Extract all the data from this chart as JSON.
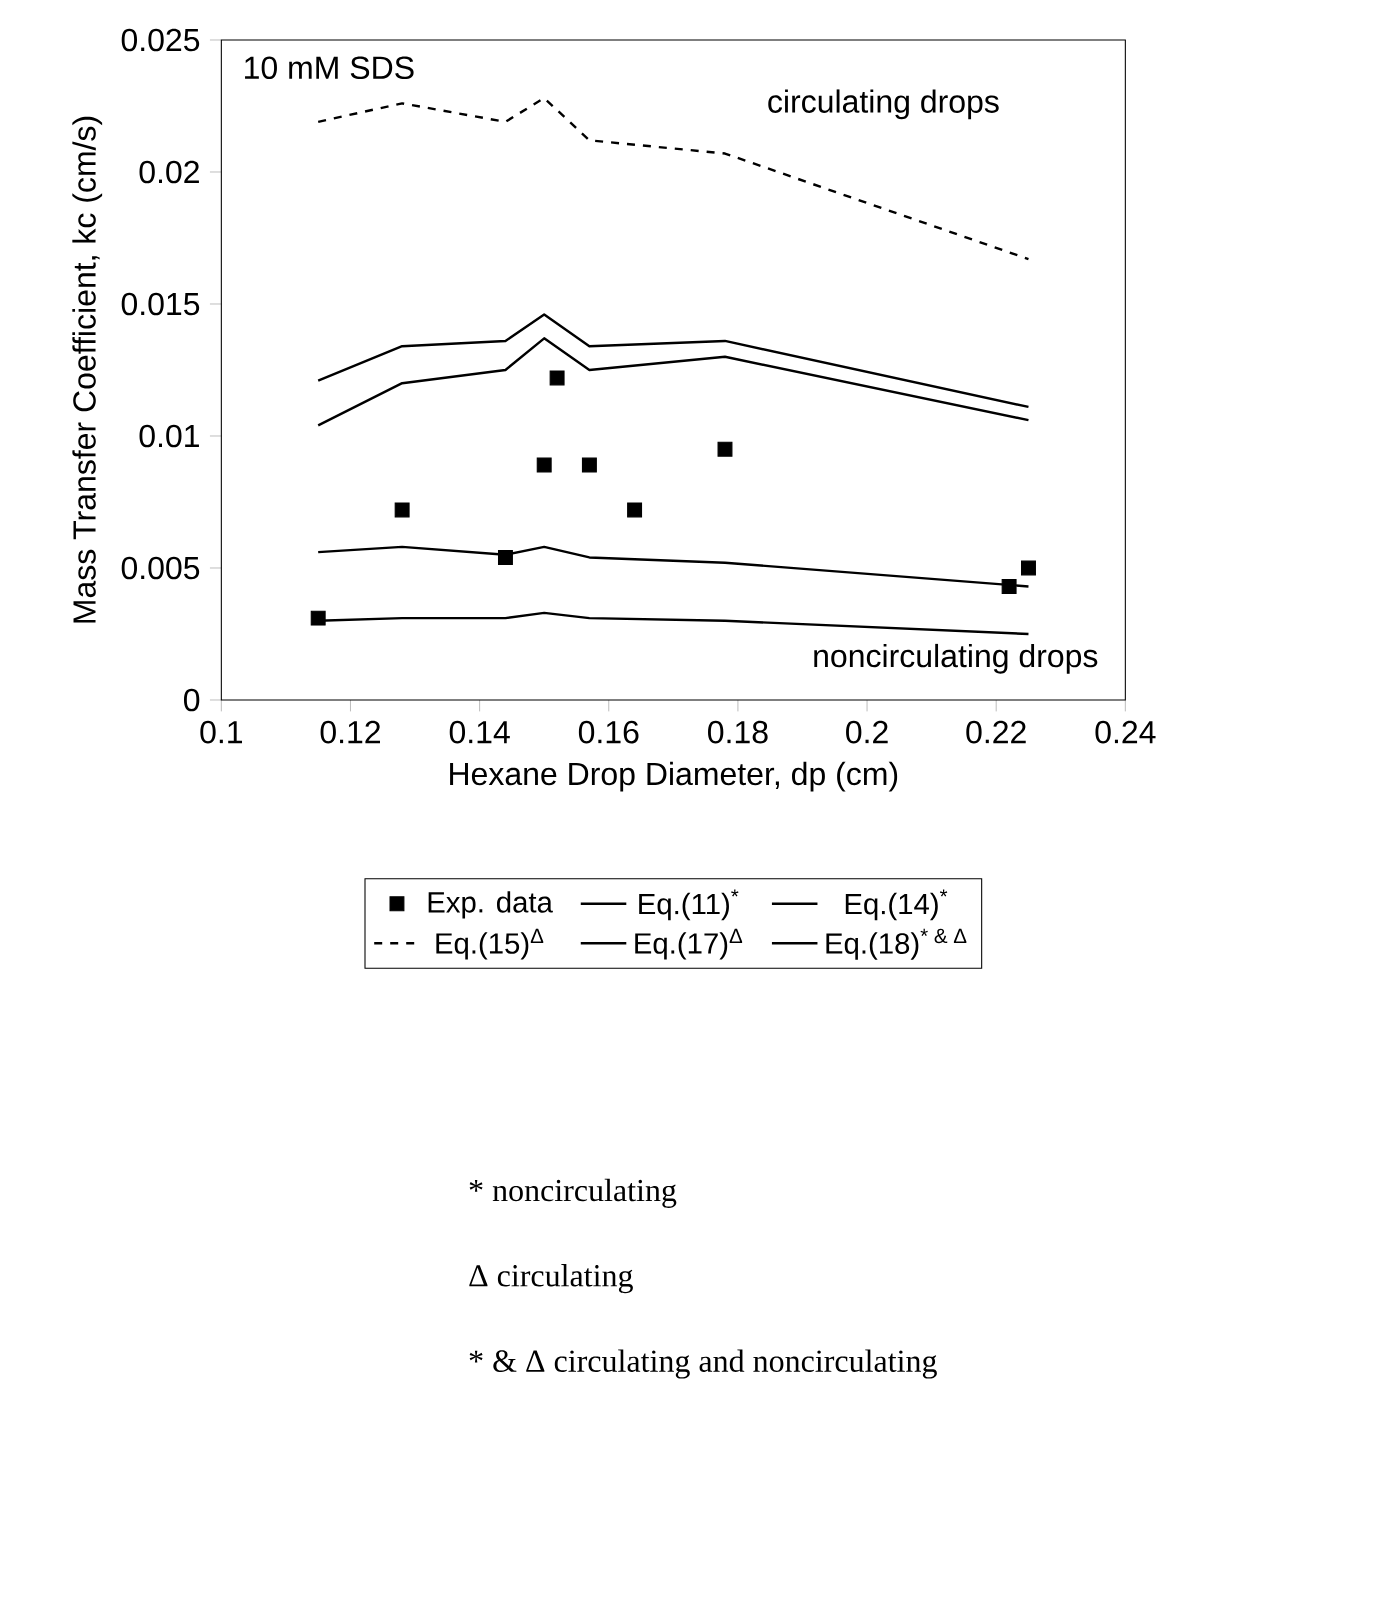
{
  "chart_data": {
    "type": "line",
    "xlabel": "Hexane Drop Diameter, dp (cm)",
    "ylabel": "Mass Transfer Coefficient, kc (cm/s)",
    "xlim": [
      0.1,
      0.24
    ],
    "xticks": [
      0.1,
      0.12,
      0.14,
      0.16,
      0.18,
      0.2,
      0.22,
      0.24
    ],
    "ylim": [
      0,
      0.025
    ],
    "yticks": [
      0,
      0.005,
      0.01,
      0.015,
      0.02,
      0.025
    ],
    "legend": "bottom",
    "grid": false,
    "series": [
      {
        "name": "Exp. data",
        "type": "scatter",
        "marker": "square",
        "color": "#000000",
        "x": [
          0.115,
          0.128,
          0.144,
          0.15,
          0.152,
          0.157,
          0.164,
          0.178,
          0.222,
          0.225
        ],
        "values": [
          0.0031,
          0.0072,
          0.0054,
          0.0089,
          0.0122,
          0.0089,
          0.0072,
          0.0095,
          0.0043,
          0.005
        ]
      },
      {
        "name": "Eq.(11)$^{*}$",
        "line_style": "solid",
        "color": "#000000",
        "x": [
          0.115,
          0.128,
          0.144,
          0.15,
          0.157,
          0.178,
          0.225
        ],
        "values": [
          0.0056,
          0.0058,
          0.0055,
          0.0058,
          0.0054,
          0.0052,
          0.0043
        ]
      },
      {
        "name": "Eq.(14)$^{*}$",
        "line_style": "solid",
        "color": "#000000",
        "x": [
          0.115,
          0.128,
          0.144,
          0.15,
          0.157,
          0.178,
          0.225
        ],
        "values": [
          0.003,
          0.0031,
          0.0031,
          0.0033,
          0.0031,
          0.003,
          0.0025
        ]
      },
      {
        "name": "Eq.(15)$^{Δ}$",
        "line_style": "dashed",
        "color": "#000000",
        "x": [
          0.115,
          0.128,
          0.144,
          0.15,
          0.157,
          0.178,
          0.225
        ],
        "values": [
          0.0219,
          0.0226,
          0.0219,
          0.0228,
          0.0212,
          0.0207,
          0.0167
        ]
      },
      {
        "name": "Eq.(17)$^{Δ}$",
        "line_style": "solid",
        "color": "#000000",
        "x": [
          0.115,
          0.128,
          0.144,
          0.15,
          0.157,
          0.178,
          0.225
        ],
        "values": [
          0.0121,
          0.0134,
          0.0136,
          0.0146,
          0.0134,
          0.0136,
          0.0111
        ]
      },
      {
        "name": "Eq.(18)$^{* & Δ}$",
        "line_style": "solid",
        "color": "#000000",
        "x": [
          0.115,
          0.128,
          0.144,
          0.15,
          0.157,
          0.178,
          0.225
        ],
        "values": [
          0.0104,
          0.012,
          0.0125,
          0.0137,
          0.0125,
          0.013,
          0.0106
        ]
      }
    ],
    "annotations": [
      "10 mM SDS",
      "circulating drops",
      "noncirculating drops",
      "* noncirculating",
      "Δ circulating",
      "* & Δ circulating and noncirculating"
    ]
  }
}
